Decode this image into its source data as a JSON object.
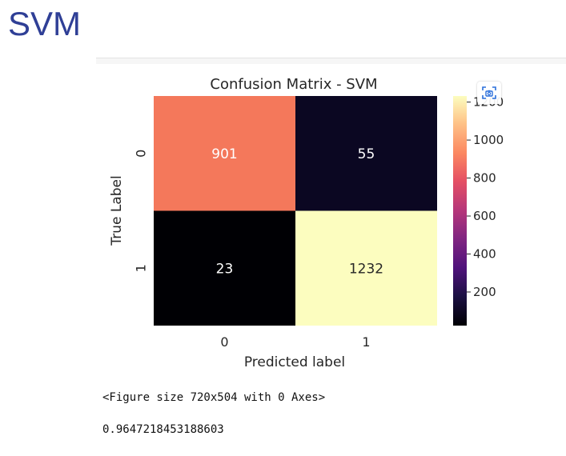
{
  "page": {
    "heading": "SVM"
  },
  "toolbar": {
    "screenshot_icon": "camera-scan-icon"
  },
  "output": {
    "figure_text": "<Figure size 720x504 with 0 Axes>",
    "score_text": "0.9647218453188603"
  },
  "colors": {
    "heading": "#2f3f96",
    "colormap": "magma"
  },
  "chart_data": {
    "type": "heatmap",
    "title": "Confusion Matrix - SVM",
    "xlabel": "Predicted label",
    "ylabel": "True Label",
    "x_ticks": [
      "0",
      "1"
    ],
    "y_ticks": [
      "0",
      "1"
    ],
    "values": [
      [
        901,
        55
      ],
      [
        23,
        1232
      ]
    ],
    "cell_colors": [
      [
        "#f4785b",
        "#0b0722"
      ],
      [
        "#000004",
        "#fcfdbf"
      ]
    ],
    "annotation_colors": [
      [
        "#ffffff",
        "#ffffff"
      ],
      [
        "#ffffff",
        "#262626"
      ]
    ],
    "colorbar": {
      "range": [
        23,
        1232
      ],
      "ticks": [
        200,
        400,
        600,
        800,
        1000,
        1200
      ],
      "tick_labels": [
        "200",
        "400",
        "600",
        "800",
        "1000",
        "1200"
      ]
    }
  }
}
